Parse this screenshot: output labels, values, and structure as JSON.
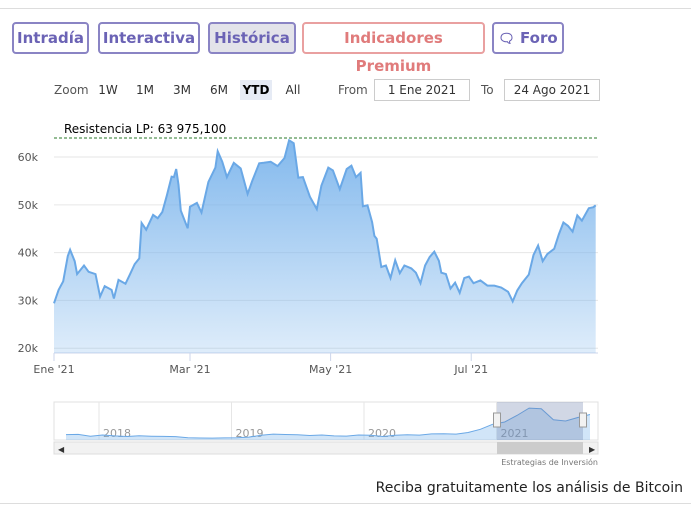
{
  "tabs": [
    "Intradía",
    "Interactiva",
    "Histórica",
    "Indicadores Premium",
    "Foro"
  ],
  "zoom": {
    "label": "Zoom",
    "buttons": [
      "1W",
      "1M",
      "3M",
      "6M",
      "YTD",
      "All"
    ],
    "from_label": "From",
    "from": "1 Ene 2021",
    "to_label": "To",
    "to": "24 Ago 2021"
  },
  "chart_data": {
    "type": "area",
    "annotation": {
      "label": "Resistencia LP: 63 975,100",
      "value": 63975.1
    },
    "xlim": [
      0,
      236
    ],
    "xticks": [
      {
        "value": 0,
        "label": "Ene '21"
      },
      {
        "value": 59,
        "label": "Mar '21"
      },
      {
        "value": 120,
        "label": "May '21"
      },
      {
        "value": 181,
        "label": "Jul '21"
      }
    ],
    "ylim": [
      19000,
      68800
    ],
    "yticks": [
      {
        "value": 20000,
        "label": "20k"
      },
      {
        "value": 30000,
        "label": "30k"
      },
      {
        "value": 40000,
        "label": "40k"
      },
      {
        "value": 50000,
        "label": "50k"
      },
      {
        "value": 60000,
        "label": "60k"
      }
    ],
    "grid": true,
    "series": [
      {
        "color": "#6aa8e6",
        "x": [
          0,
          2,
          4,
          6,
          7,
          9,
          10,
          13,
          15,
          18,
          20,
          22,
          25,
          26,
          28,
          31,
          33,
          35,
          37,
          38,
          40,
          43,
          45,
          47,
          49,
          51,
          52,
          53,
          54,
          55,
          57,
          58,
          59,
          62,
          64,
          67,
          70,
          71,
          73,
          75,
          78,
          81,
          84,
          86,
          89,
          91,
          94,
          97,
          100,
          102,
          104,
          106,
          108,
          111,
          114,
          116,
          119,
          121,
          124,
          127,
          129,
          131,
          133,
          134,
          136,
          138,
          139,
          140,
          142,
          144,
          146,
          148,
          150,
          152,
          155,
          157,
          159,
          161,
          163,
          165,
          167,
          168,
          170,
          172,
          174,
          176,
          178,
          180,
          182,
          185,
          188,
          191,
          194,
          197,
          199,
          201,
          203,
          206,
          208,
          210,
          212,
          214,
          217,
          219,
          221,
          223,
          225,
          227,
          229,
          232,
          234,
          235
        ],
        "values": [
          29400,
          32200,
          34000,
          39300,
          40600,
          38200,
          35500,
          37300,
          36000,
          35500,
          30800,
          33000,
          32200,
          30400,
          34300,
          33500,
          35500,
          37600,
          38800,
          46200,
          44800,
          47900,
          47200,
          48500,
          52000,
          55900,
          55800,
          57500,
          54200,
          48800,
          46300,
          45100,
          49600,
          50400,
          48400,
          54800,
          57800,
          61200,
          59000,
          55800,
          58800,
          57600,
          52300,
          55000,
          58700,
          58800,
          59000,
          58100,
          59800,
          63500,
          62900,
          55700,
          55800,
          51700,
          49100,
          54000,
          57800,
          57200,
          53300,
          57500,
          58200,
          55800,
          56700,
          49700,
          49900,
          46400,
          43500,
          42900,
          37000,
          37300,
          34700,
          38400,
          35700,
          37300,
          36700,
          35800,
          33600,
          37300,
          39100,
          40200,
          38300,
          35800,
          35500,
          32500,
          33700,
          31600,
          34700,
          35000,
          33600,
          34200,
          33100,
          33100,
          32700,
          31800,
          29800,
          32100,
          33600,
          35400,
          39500,
          41500,
          38200,
          39700,
          40800,
          43800,
          46300,
          45600,
          44400,
          47800,
          46700,
          49300,
          49500,
          49900
        ]
      }
    ],
    "navigator": {
      "years": [
        "2018",
        "2019",
        "2020",
        "2021"
      ],
      "ylim": [
        0,
        70000
      ],
      "values": [
        10000,
        10300,
        7000,
        9200,
        7500,
        6400,
        7700,
        7000,
        6600,
        6300,
        4000,
        3700,
        3450,
        3800,
        4100,
        5300,
        8600,
        10800,
        10100,
        9600,
        8300,
        9200,
        7600,
        7200,
        9300,
        8600,
        6400,
        8600,
        9500,
        9100,
        11300,
        11600,
        10800,
        13800,
        19700,
        29000,
        33100,
        45100,
        58700,
        57700,
        37300,
        35000,
        41500,
        47000
      ]
    },
    "credits": "Estrategias de Inversión"
  },
  "footer": "Reciba gratuitamente los análisis de Bitcoin"
}
